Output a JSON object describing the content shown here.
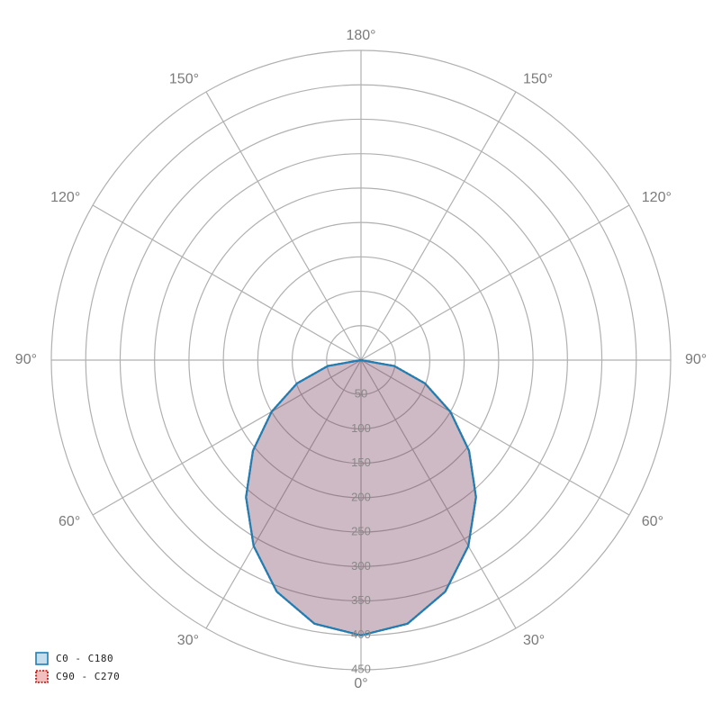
{
  "chart_data": {
    "type": "polar",
    "x": [
      -90,
      -80,
      -70,
      -60,
      -50,
      -40,
      -30,
      -20,
      -10,
      0,
      10,
      20,
      30,
      40,
      50,
      60,
      70,
      80,
      90
    ],
    "series": [
      {
        "name": "C0 - C180",
        "color": "#1f7fb5",
        "values": [
          0,
          49,
          99,
          150,
          205,
          260,
          312,
          358,
          389,
          400,
          389,
          358,
          312,
          260,
          205,
          150,
          99,
          49,
          0
        ]
      },
      {
        "name": "C90 - C270",
        "color": "#cc0000",
        "values": [
          0,
          49,
          99,
          150,
          205,
          260,
          312,
          358,
          389,
          400,
          389,
          358,
          312,
          260,
          205,
          150,
          99,
          49,
          0
        ]
      }
    ],
    "rlim": [
      0,
      450
    ],
    "rticks": [
      50,
      100,
      150,
      200,
      250,
      300,
      350,
      400,
      450
    ],
    "xticks": [
      {
        "value": -150,
        "label": "150°"
      },
      {
        "value": -120,
        "label": "120°"
      },
      {
        "value": -90,
        "label": "90°"
      },
      {
        "value": -60,
        "label": "60°"
      },
      {
        "value": -30,
        "label": "30°"
      },
      {
        "value": 0,
        "label": "0°"
      },
      {
        "value": 30,
        "label": "30°"
      },
      {
        "value": 60,
        "label": "60°"
      },
      {
        "value": 90,
        "label": "90°"
      },
      {
        "value": 120,
        "label": "120°"
      },
      {
        "value": 150,
        "label": "150°"
      },
      {
        "value": 180,
        "label": "180°"
      }
    ],
    "legend": "bottom-left"
  }
}
